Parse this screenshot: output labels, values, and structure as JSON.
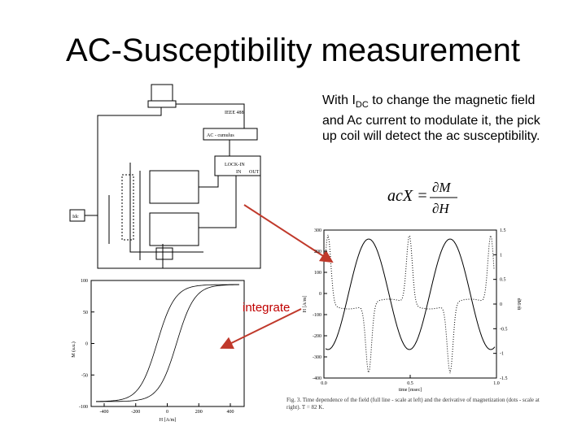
{
  "title": "AC-Susceptibility measurement",
  "description": {
    "before": "With I",
    "subscript": "DC",
    "after": " to change the magnetic field and Ac current to modulate it, the pick up coil will detect the ac susceptibility."
  },
  "formula": {
    "lhs": "acX =",
    "numerator": "∂M",
    "denominator": "∂H"
  },
  "annotation": "integrate",
  "circuit": {
    "labels": [
      "IEEE 488",
      "AC - cumulus",
      "LOCK-IN",
      "IN",
      "OUT",
      "Idc"
    ]
  },
  "hysteresis_plot": {
    "y_label": "M (a.u.)",
    "x_label": "H [A/m]",
    "yticks": [
      "100",
      "50",
      "0",
      "-50",
      "-100"
    ],
    "xticks": [
      "-400",
      "-200",
      "0",
      "200",
      "400"
    ]
  },
  "time_plot": {
    "y_label": "H [A/m]",
    "y2_label": "dM/dt",
    "x_label": "time [msec]",
    "yticks": [
      "300",
      "200",
      "100",
      "0",
      "-100",
      "-200",
      "-300",
      "-400"
    ],
    "y2ticks": [
      "1.5",
      "1",
      "0.5",
      "0",
      "-0.5",
      "-1",
      "-1.5"
    ],
    "xticks": [
      "0.0",
      "0.5",
      "1.0"
    ],
    "caption": "Fig. 3. Time dependence of the field (full line - scale at left) and the derivative of magnetization (dots - scale at right). T = 82 K."
  }
}
